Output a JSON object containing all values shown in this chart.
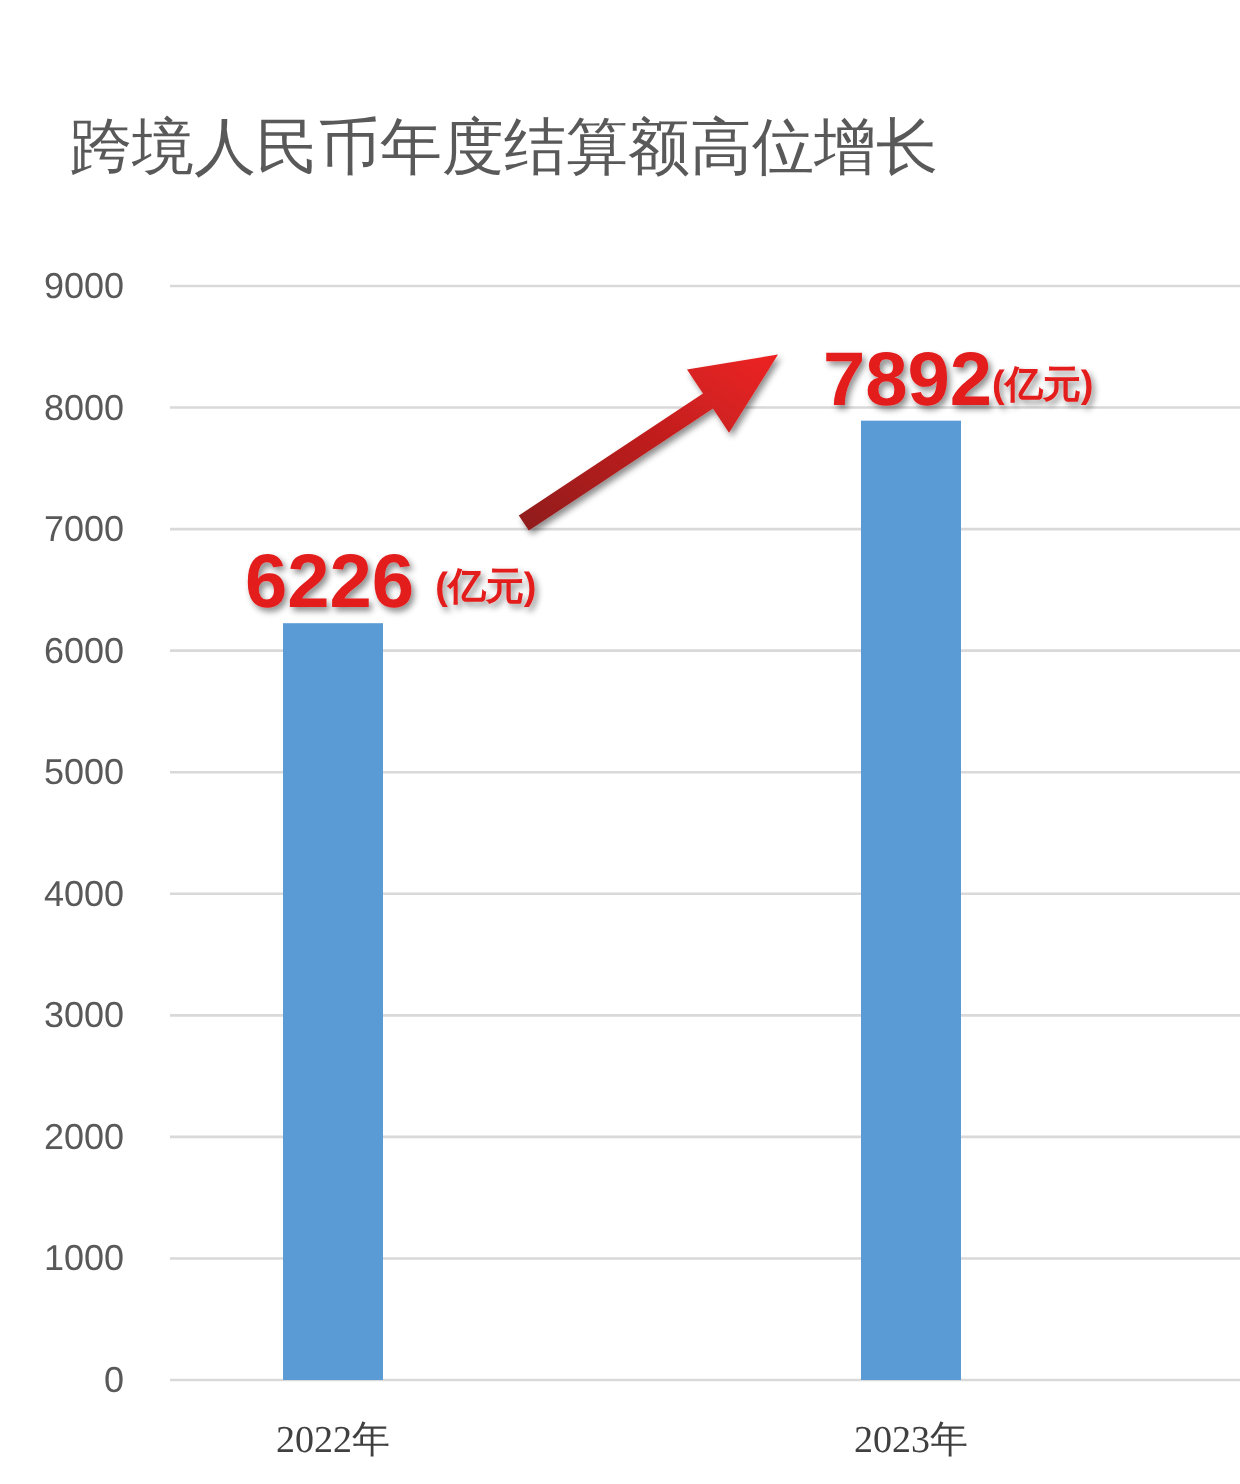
{
  "chart_data": {
    "type": "bar",
    "title": "跨境人民币年度结算额高位增长",
    "categories": [
      "2022年",
      "2023年"
    ],
    "values": [
      6226,
      7892
    ],
    "color": "#5b9bd5",
    "ylim": [
      0,
      9000
    ],
    "yticks": [
      0,
      1000,
      2000,
      3000,
      4000,
      5000,
      6000,
      7000,
      8000,
      9000
    ],
    "grid": "y",
    "value_labels": [
      "6226 (亿元)",
      "7892(亿元)"
    ]
  }
}
